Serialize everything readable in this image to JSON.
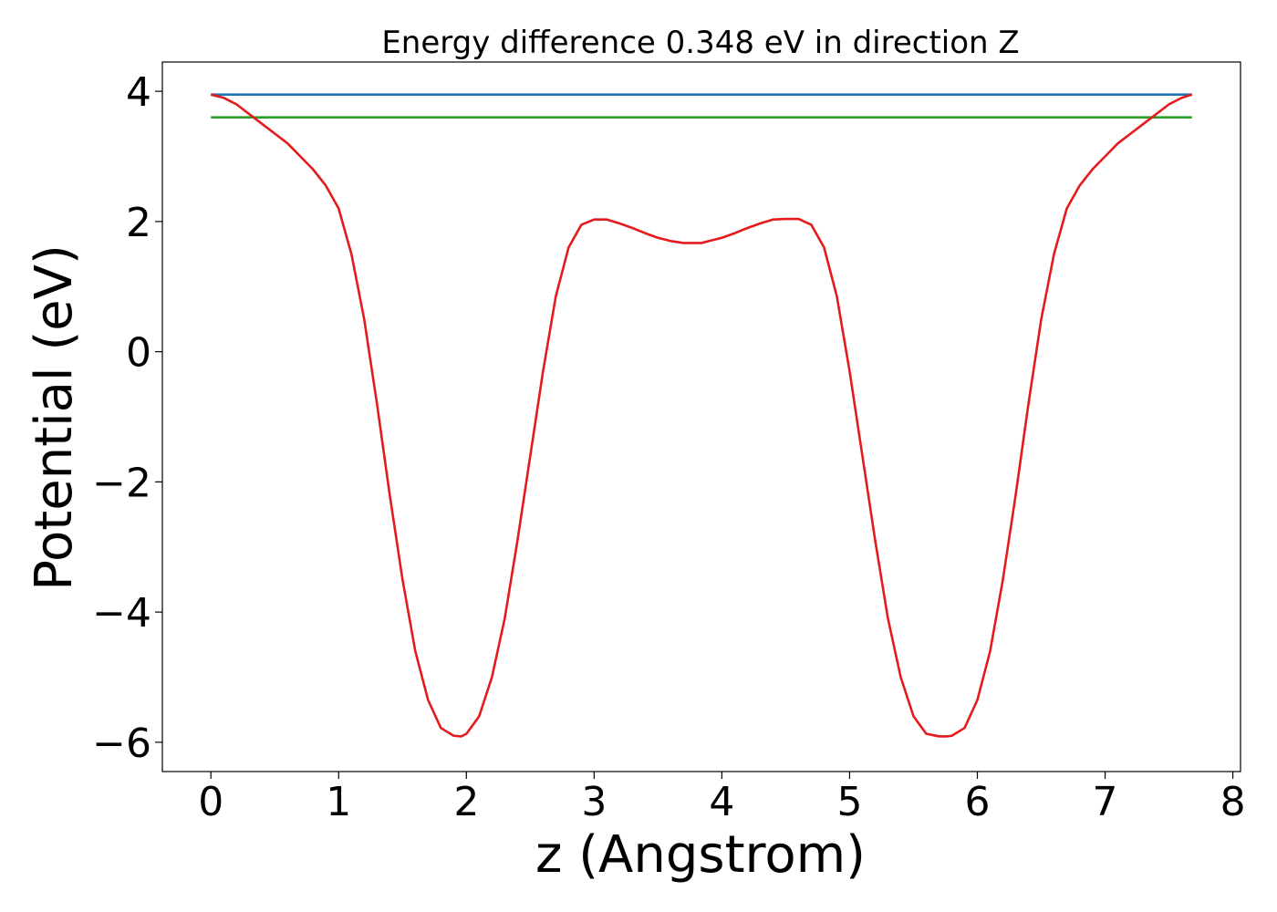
{
  "chart_data": {
    "type": "line",
    "title": "Energy difference 0.348 eV in direction Z",
    "xlabel": "z (Angstrom)",
    "ylabel": "Potential (eV)",
    "xlim": [
      -0.38,
      8.06
    ],
    "ylim": [
      -6.45,
      4.45
    ],
    "x_ticks": [
      0,
      1,
      2,
      3,
      4,
      5,
      6,
      7,
      8
    ],
    "x_tick_labels": [
      "0",
      "1",
      "2",
      "3",
      "4",
      "5",
      "6",
      "7",
      "8"
    ],
    "y_ticks": [
      -6,
      -4,
      -2,
      0,
      2,
      4
    ],
    "y_tick_labels": [
      "−6",
      "−4",
      "−2",
      "0",
      "2",
      "4"
    ],
    "grid": false,
    "series": [
      {
        "color": "#1f77b4",
        "x": [
          0,
          7.68
        ],
        "y": [
          3.95,
          3.95
        ]
      },
      {
        "color": "#2ca02c",
        "x": [
          0,
          7.68
        ],
        "y": [
          3.6,
          3.6
        ]
      },
      {
        "color": "#e41a1c",
        "x": [
          0,
          0.1,
          0.2,
          0.3,
          0.4,
          0.5,
          0.6,
          0.7,
          0.8,
          0.9,
          1.0,
          1.1,
          1.2,
          1.3,
          1.4,
          1.5,
          1.6,
          1.7,
          1.8,
          1.9,
          1.96,
          2.0,
          2.1,
          2.2,
          2.3,
          2.4,
          2.5,
          2.6,
          2.7,
          2.8,
          2.9,
          3.0,
          3.1,
          3.2,
          3.3,
          3.4,
          3.5,
          3.6,
          3.7,
          3.8,
          3.84,
          3.9,
          4.0,
          4.1,
          4.2,
          4.3,
          4.4,
          4.5,
          4.6,
          4.7,
          4.8,
          4.9,
          5.0,
          5.1,
          5.2,
          5.3,
          5.4,
          5.5,
          5.6,
          5.7,
          5.76,
          5.8,
          5.9,
          6.0,
          6.1,
          6.2,
          6.3,
          6.4,
          6.5,
          6.6,
          6.7,
          6.8,
          6.9,
          7.0,
          7.1,
          7.2,
          7.3,
          7.4,
          7.5,
          7.6,
          7.68
        ],
        "y": [
          3.95,
          3.9,
          3.8,
          3.65,
          3.5,
          3.35,
          3.2,
          3.0,
          2.8,
          2.55,
          2.2,
          1.5,
          0.5,
          -0.8,
          -2.2,
          -3.5,
          -4.6,
          -5.35,
          -5.78,
          -5.9,
          -5.91,
          -5.87,
          -5.6,
          -5.0,
          -4.1,
          -2.9,
          -1.6,
          -0.3,
          0.85,
          1.6,
          1.95,
          2.03,
          2.03,
          1.97,
          1.9,
          1.82,
          1.75,
          1.7,
          1.67,
          1.67,
          1.67,
          1.7,
          1.75,
          1.82,
          1.9,
          1.97,
          2.03,
          2.04,
          2.04,
          1.95,
          1.6,
          0.85,
          -0.3,
          -1.6,
          -2.9,
          -4.1,
          -5.0,
          -5.6,
          -5.87,
          -5.91,
          -5.91,
          -5.9,
          -5.78,
          -5.35,
          -4.6,
          -3.5,
          -2.2,
          -0.8,
          0.5,
          1.5,
          2.2,
          2.55,
          2.8,
          3.0,
          3.2,
          3.35,
          3.5,
          3.65,
          3.8,
          3.9,
          3.95
        ]
      }
    ]
  }
}
